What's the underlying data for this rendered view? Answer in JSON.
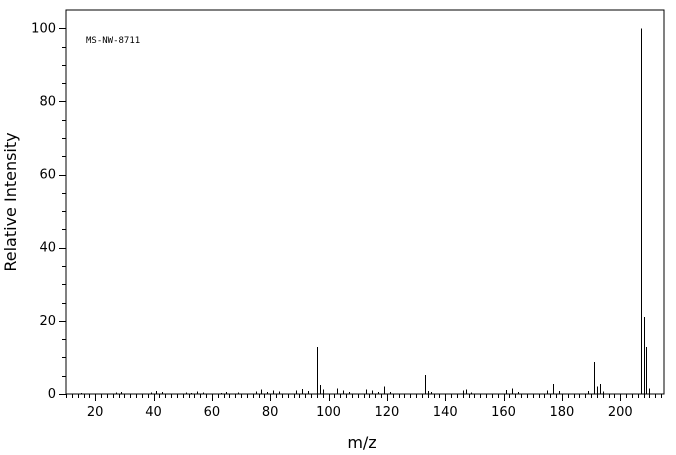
{
  "chart_data": {
    "type": "bar",
    "title": "",
    "annotation": "MS-NW-8711",
    "xlabel": "m/z",
    "ylabel": "Relative Intensity",
    "xlim": [
      10,
      215
    ],
    "ylim": [
      0,
      105
    ],
    "x_ticks": [
      20,
      40,
      60,
      80,
      100,
      120,
      140,
      160,
      180,
      200
    ],
    "y_ticks": [
      0,
      20,
      40,
      60,
      80,
      100
    ],
    "grid": false,
    "x": [
      15,
      27,
      29,
      39,
      41,
      43,
      51,
      53,
      55,
      57,
      63,
      65,
      69,
      75,
      77,
      79,
      81,
      83,
      89,
      91,
      93,
      96,
      97,
      98,
      103,
      105,
      107,
      113,
      115,
      117,
      119,
      121,
      133,
      134,
      135,
      146,
      147,
      149,
      161,
      163,
      165,
      175,
      177,
      179,
      189,
      191,
      192,
      193,
      194,
      207,
      208,
      209,
      210
    ],
    "values": [
      0.3,
      0.4,
      0.6,
      0.4,
      0.8,
      0.5,
      0.4,
      0.3,
      0.7,
      0.4,
      0.3,
      0.6,
      0.4,
      0.7,
      1.2,
      0.6,
      0.9,
      0.7,
      1.0,
      1.4,
      0.8,
      12.8,
      2.4,
      1.2,
      1.5,
      1.0,
      0.5,
      1.2,
      1.0,
      0.6,
      2.0,
      0.5,
      5.2,
      0.8,
      0.5,
      0.9,
      1.2,
      0.4,
      1.1,
      1.5,
      0.6,
      1.0,
      2.8,
      0.8,
      0.8,
      8.7,
      2.0,
      2.8,
      0.7,
      100,
      21,
      12.8,
      1.5
    ]
  }
}
